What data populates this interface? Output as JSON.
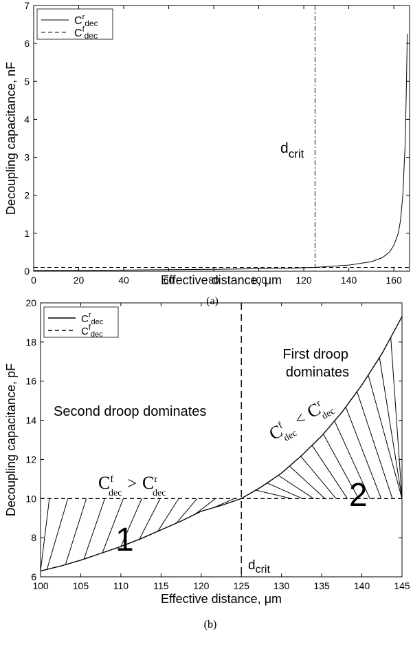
{
  "chart_data": [
    {
      "type": "line",
      "panel_caption": "(a)",
      "xlabel": "Effective distance, μm",
      "ylabel": "Decoupling capacitance, nF",
      "xlim": [
        0,
        167
      ],
      "ylim": [
        0,
        7
      ],
      "xticks": [
        0,
        20,
        40,
        60,
        80,
        100,
        120,
        140,
        160
      ],
      "yticks": [
        0,
        1,
        2,
        3,
        4,
        5,
        6,
        7
      ],
      "grid": false,
      "legend_position": "top-left",
      "legend": [
        {
          "base": "C",
          "sup": "r",
          "sub": "dec",
          "style": "solid"
        },
        {
          "base": "C",
          "sup": "f",
          "sub": "dec",
          "style": "dashed"
        }
      ],
      "series": [
        {
          "style": "solid",
          "x": [
            0,
            20,
            40,
            60,
            80,
            100,
            110,
            120,
            125,
            130,
            140,
            150,
            155,
            158,
            160,
            162,
            163,
            164,
            165,
            165.5,
            166
          ],
          "y": [
            0.02,
            0.025,
            0.03,
            0.04,
            0.05,
            0.065,
            0.075,
            0.09,
            0.1,
            0.12,
            0.16,
            0.25,
            0.36,
            0.5,
            0.68,
            1.0,
            1.35,
            2.0,
            3.3,
            4.6,
            6.25
          ]
        },
        {
          "style": "dashed",
          "x": [
            0,
            167
          ],
          "y": [
            0.1,
            0.1
          ]
        }
      ],
      "vline": {
        "x": 125,
        "style": "dash-dot"
      },
      "annotations": [
        {
          "base": "d",
          "sub": "crit"
        }
      ]
    },
    {
      "type": "line",
      "panel_caption": "(b)",
      "xlabel": "Effective distance, μm",
      "ylabel": "Decoupling capacitance, pF",
      "xlim": [
        100,
        145
      ],
      "ylim": [
        6,
        20
      ],
      "xticks": [
        100,
        105,
        110,
        115,
        120,
        125,
        130,
        135,
        140,
        145
      ],
      "yticks": [
        6,
        8,
        10,
        12,
        14,
        16,
        18,
        20
      ],
      "grid": false,
      "legend_position": "top-left",
      "legend": [
        {
          "base": "C",
          "sup": "r",
          "sub": "dec",
          "style": "solid"
        },
        {
          "base": "C",
          "sup": "f",
          "sub": "dec",
          "style": "dashed"
        }
      ],
      "series": [
        {
          "style": "solid",
          "x": [
            100,
            102.5,
            105,
            107.5,
            110,
            112.5,
            115,
            117.5,
            120,
            122.5,
            125,
            127.5,
            130,
            132.5,
            135,
            137.5,
            140,
            142.5,
            145
          ],
          "y": [
            6.3,
            6.55,
            6.85,
            7.2,
            7.55,
            7.95,
            8.4,
            8.85,
            9.35,
            9.65,
            10.0,
            10.6,
            11.3,
            12.2,
            13.2,
            14.4,
            15.8,
            17.4,
            19.3
          ]
        },
        {
          "style": "dashed",
          "x": [
            100,
            145
          ],
          "y": [
            10,
            10
          ]
        }
      ],
      "vline": {
        "x": 125,
        "style": "dashed"
      },
      "annotations": [
        {
          "text": "Second droop dominates"
        },
        {
          "text": "First droop\ndominates"
        },
        {
          "text": "1"
        },
        {
          "text": "2"
        },
        {
          "lhs": {
            "base": "C",
            "sup": "f",
            "sub": "dec"
          },
          "op": ">",
          "rhs": {
            "base": "C",
            "sup": "r",
            "sub": "dec"
          }
        },
        {
          "lhs": {
            "base": "C",
            "sup": "f",
            "sub": "dec"
          },
          "op": "<",
          "rhs": {
            "base": "C",
            "sup": "r",
            "sub": "dec"
          }
        },
        {
          "base": "d",
          "sub": "crit"
        }
      ]
    }
  ]
}
